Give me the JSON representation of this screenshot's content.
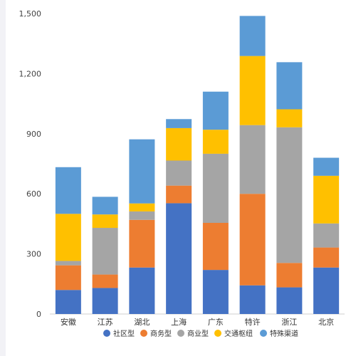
{
  "chart_data": {
    "type": "bar",
    "stacked": true,
    "categories": [
      "安徽",
      "江苏",
      "湖北",
      "上海",
      "广东",
      "特许",
      "浙江",
      "北京"
    ],
    "series": [
      {
        "name": "社区型",
        "color": "#4472C4",
        "values": [
          120,
          130,
          232,
          553,
          220,
          143,
          133,
          232
        ]
      },
      {
        "name": "商务型",
        "color": "#ED7D31",
        "values": [
          123,
          67,
          238,
          88,
          235,
          457,
          122,
          100
        ]
      },
      {
        "name": "商业型",
        "color": "#A5A5A5",
        "values": [
          22,
          233,
          42,
          125,
          345,
          343,
          677,
          120
        ]
      },
      {
        "name": "交通枢纽",
        "color": "#FFC000",
        "values": [
          235,
          67,
          40,
          162,
          120,
          345,
          90,
          238
        ]
      },
      {
        "name": "特殊渠道",
        "color": "#5B9BD5",
        "values": [
          233,
          88,
          320,
          45,
          190,
          200,
          235,
          90
        ]
      }
    ],
    "yticks": [
      "0",
      "300",
      "600",
      "900",
      "1,200",
      "1,500"
    ],
    "ylim": [
      0,
      1500
    ],
    "grid": false,
    "legend": "bottom"
  }
}
